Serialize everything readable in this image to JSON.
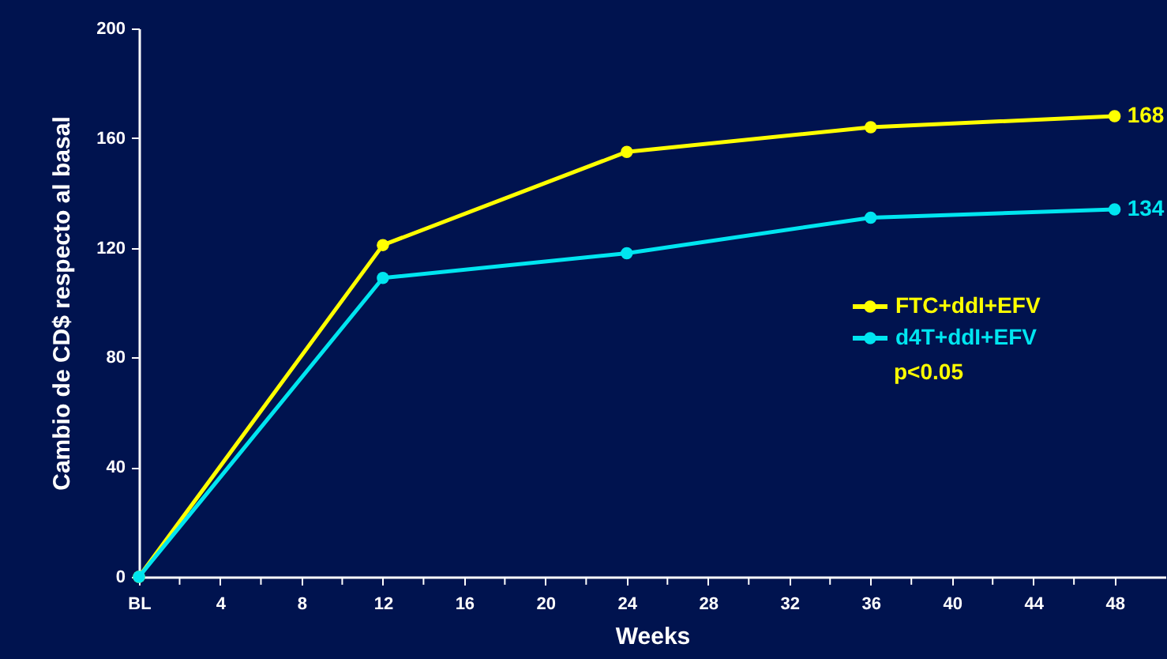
{
  "chart_data": {
    "type": "line",
    "xlabel": "Weeks",
    "ylabel": "Cambio de CD$ respecto al basal",
    "x": [
      0,
      12,
      24,
      36,
      48
    ],
    "series": [
      {
        "name": "FTC+ddI+EFV",
        "color": "#ffff00",
        "values": [
          0,
          121,
          155,
          164,
          168
        ],
        "value_labels": [
          null,
          null,
          null,
          null,
          "168"
        ]
      },
      {
        "name": "d4T+ddI+EFV",
        "color": "#00e5f0",
        "values": [
          0,
          109,
          118,
          131,
          134
        ],
        "value_labels": [
          null,
          null,
          null,
          null,
          "134"
        ]
      }
    ],
    "xlim": [
      0,
      50.5
    ],
    "xticks": [
      {
        "value": 0,
        "label": "BL"
      },
      {
        "value": 2,
        "label": null
      },
      4,
      {
        "value": 6,
        "label": null
      },
      8,
      {
        "value": 10,
        "label": null
      },
      12,
      {
        "value": 14,
        "label": null
      },
      16,
      {
        "value": 18,
        "label": null
      },
      20,
      {
        "value": 22,
        "label": null
      },
      24,
      {
        "value": 26,
        "label": null
      },
      28,
      {
        "value": 30,
        "label": null
      },
      32,
      {
        "value": 34,
        "label": null
      },
      36,
      {
        "value": 38,
        "label": null
      },
      40,
      {
        "value": 42,
        "label": null
      },
      44,
      {
        "value": 46,
        "label": null
      },
      48
    ],
    "ylim": [
      0,
      200
    ],
    "yticks": [
      0,
      40,
      80,
      120,
      160,
      200
    ],
    "annotations": [
      "p<0.05"
    ],
    "legend": "right",
    "marker": "circle",
    "line_style": "solid",
    "grid": false
  }
}
